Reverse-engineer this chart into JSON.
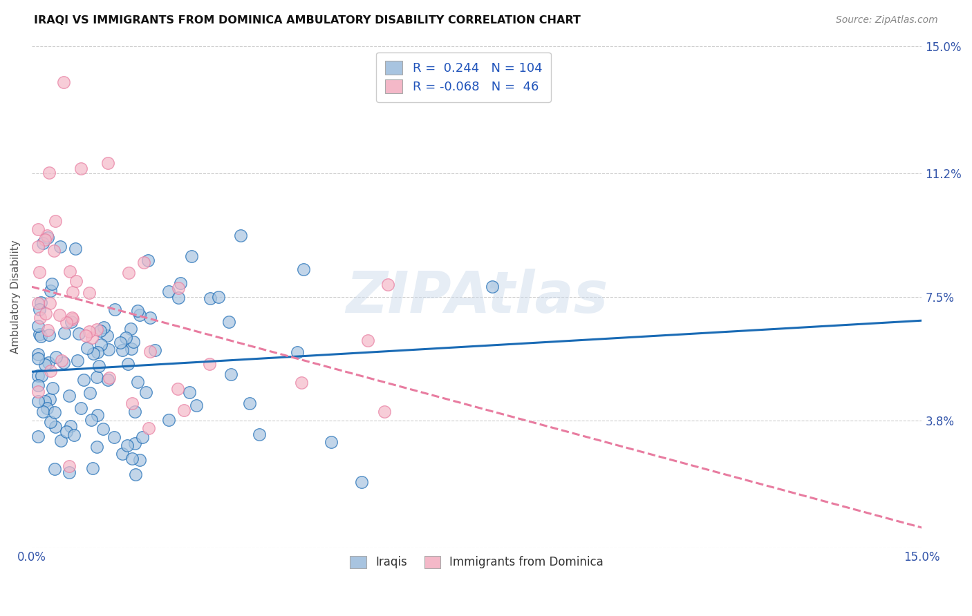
{
  "title": "IRAQI VS IMMIGRANTS FROM DOMINICA AMBULATORY DISABILITY CORRELATION CHART",
  "source": "Source: ZipAtlas.com",
  "ylabel": "Ambulatory Disability",
  "xlim": [
    0.0,
    0.15
  ],
  "ylim": [
    0.0,
    0.15
  ],
  "ytick_values": [
    0.0,
    0.038,
    0.075,
    0.112,
    0.15
  ],
  "xtick_values": [
    0.0,
    0.025,
    0.05,
    0.075,
    0.1,
    0.125,
    0.15
  ],
  "iraqis_R": 0.244,
  "iraqis_N": 104,
  "dominica_R": -0.068,
  "dominica_N": 46,
  "iraqis_color": "#a8c4e0",
  "dominica_color": "#f4b8c8",
  "iraqis_line_color": "#1a6bb5",
  "dominica_line_color": "#e87ca0",
  "background_color": "#ffffff",
  "grid_color": "#c8c8c8",
  "watermark": "ZIPAtlas",
  "iraqis_seed": 101,
  "dominica_seed": 202
}
